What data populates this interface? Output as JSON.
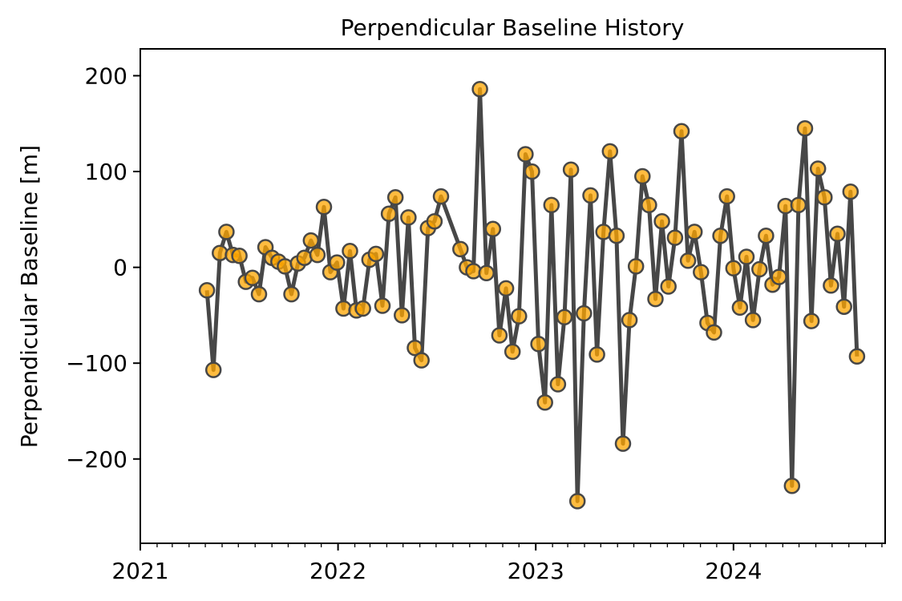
{
  "chart_data": {
    "type": "line",
    "title": "Perpendicular Baseline History",
    "xlabel": "",
    "ylabel": "Perpendicular Baseline [m]",
    "xlim": [
      "2021-01-01",
      "2024-10-07"
    ],
    "ylim": [
      -288,
      228
    ],
    "x_ticks": [
      {
        "label": "2021",
        "date": "2021-01-01"
      },
      {
        "label": "2022",
        "date": "2022-01-01"
      },
      {
        "label": "2023",
        "date": "2023-01-01"
      },
      {
        "label": "2024",
        "date": "2024-01-01"
      }
    ],
    "y_ticks": [
      {
        "label": "200",
        "value": 200
      },
      {
        "label": "100",
        "value": 100
      },
      {
        "label": "0",
        "value": 0
      },
      {
        "label": "−100",
        "value": -100
      },
      {
        "label": "−200",
        "value": -200
      }
    ],
    "grid": false,
    "colors": {
      "line": "#474747",
      "marker_fill": "#ffa500",
      "marker_edge": "#474747"
    },
    "series": [
      {
        "x": [
          "2021-05-04",
          "2021-05-16",
          "2021-05-28",
          "2021-06-09",
          "2021-06-21",
          "2021-07-03",
          "2021-07-15",
          "2021-07-27",
          "2021-08-08",
          "2021-08-20",
          "2021-09-01",
          "2021-09-13",
          "2021-09-25",
          "2021-10-07",
          "2021-10-19",
          "2021-10-31",
          "2021-11-12",
          "2021-11-24",
          "2021-12-06",
          "2021-12-18",
          "2021-12-30",
          "2022-01-11",
          "2022-01-23",
          "2022-02-04",
          "2022-02-16",
          "2022-02-28",
          "2022-03-12",
          "2022-03-24",
          "2022-04-05",
          "2022-04-17",
          "2022-04-29",
          "2022-05-11",
          "2022-05-23",
          "2022-06-04",
          "2022-06-16",
          "2022-06-28",
          "2022-07-10",
          "2022-08-15",
          "2022-08-27",
          "2022-09-08",
          "2022-09-20",
          "2022-10-02",
          "2022-10-14",
          "2022-10-26",
          "2022-11-07",
          "2022-11-19",
          "2022-12-01",
          "2022-12-13",
          "2022-12-25",
          "2023-01-06",
          "2023-01-18",
          "2023-01-30",
          "2023-02-11",
          "2023-02-23",
          "2023-03-07",
          "2023-03-19",
          "2023-03-31",
          "2023-04-12",
          "2023-04-24",
          "2023-05-06",
          "2023-05-18",
          "2023-05-30",
          "2023-06-11",
          "2023-06-23",
          "2023-07-05",
          "2023-07-17",
          "2023-07-29",
          "2023-08-10",
          "2023-08-22",
          "2023-09-03",
          "2023-09-15",
          "2023-09-27",
          "2023-10-09",
          "2023-10-21",
          "2023-11-02",
          "2023-11-14",
          "2023-11-26",
          "2023-12-08",
          "2023-12-20",
          "2024-01-01",
          "2024-01-13",
          "2024-01-25",
          "2024-02-06",
          "2024-02-18",
          "2024-03-01",
          "2024-03-13",
          "2024-03-25",
          "2024-04-06",
          "2024-04-18",
          "2024-04-30",
          "2024-05-12",
          "2024-05-24",
          "2024-06-05",
          "2024-06-17",
          "2024-06-29",
          "2024-07-11",
          "2024-07-23",
          "2024-08-04",
          "2024-08-16"
        ],
        "y": [
          -24,
          -107,
          15,
          37,
          13,
          12,
          -15,
          -11,
          -28,
          21,
          10,
          6,
          1,
          -28,
          4,
          10,
          28,
          13,
          63,
          -5,
          5,
          -43,
          17,
          -45,
          -43,
          8,
          14,
          -40,
          56,
          73,
          -50,
          52,
          -84,
          -97,
          41,
          48,
          74,
          19,
          0,
          -4,
          186,
          -6,
          40,
          -71,
          -22,
          -88,
          -51,
          118,
          100,
          -80,
          -141,
          65,
          -122,
          -52,
          102,
          -244,
          -48,
          75,
          -91,
          37,
          121,
          33,
          -184,
          -55,
          1,
          95,
          65,
          -33,
          48,
          -20,
          31,
          142,
          7,
          37,
          -5,
          -58,
          -68,
          33,
          74,
          -1,
          -42,
          11,
          -55,
          -2,
          33,
          -18,
          -10,
          64,
          -228,
          65,
          145,
          -56,
          103,
          73,
          -19,
          35,
          -41,
          79,
          -93
        ]
      }
    ]
  }
}
